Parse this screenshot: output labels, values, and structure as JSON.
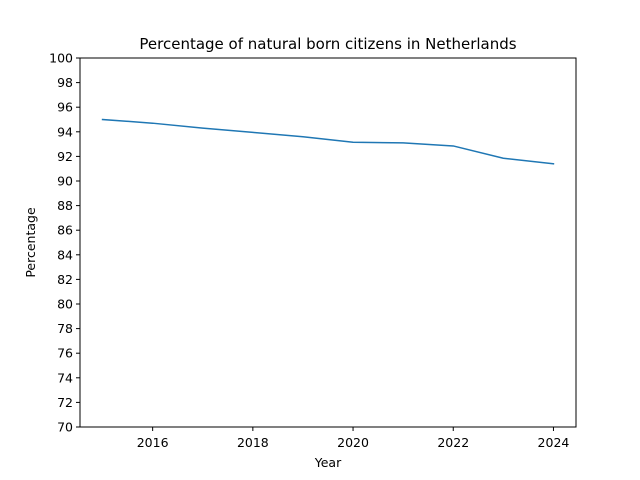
{
  "chart_data": {
    "type": "line",
    "title": "Percentage of natural born citizens in Netherlands",
    "xlabel": "Year",
    "ylabel": "Percentage",
    "xlim": [
      2014.55,
      2024.45
    ],
    "ylim": [
      70,
      100
    ],
    "x_ticks": [
      2016,
      2018,
      2020,
      2022,
      2024
    ],
    "y_ticks": [
      70,
      72,
      74,
      76,
      78,
      80,
      82,
      84,
      86,
      88,
      90,
      92,
      94,
      96,
      98,
      100
    ],
    "grid": false,
    "legend": "none",
    "series": [
      {
        "color": "#1f77b4",
        "x": [
          2015,
          2016,
          2017,
          2018,
          2019,
          2020,
          2021,
          2022,
          2023,
          2024
        ],
        "values": [
          95.0,
          94.7,
          94.3,
          93.95,
          93.6,
          93.15,
          93.1,
          92.85,
          91.85,
          91.4
        ]
      }
    ]
  }
}
